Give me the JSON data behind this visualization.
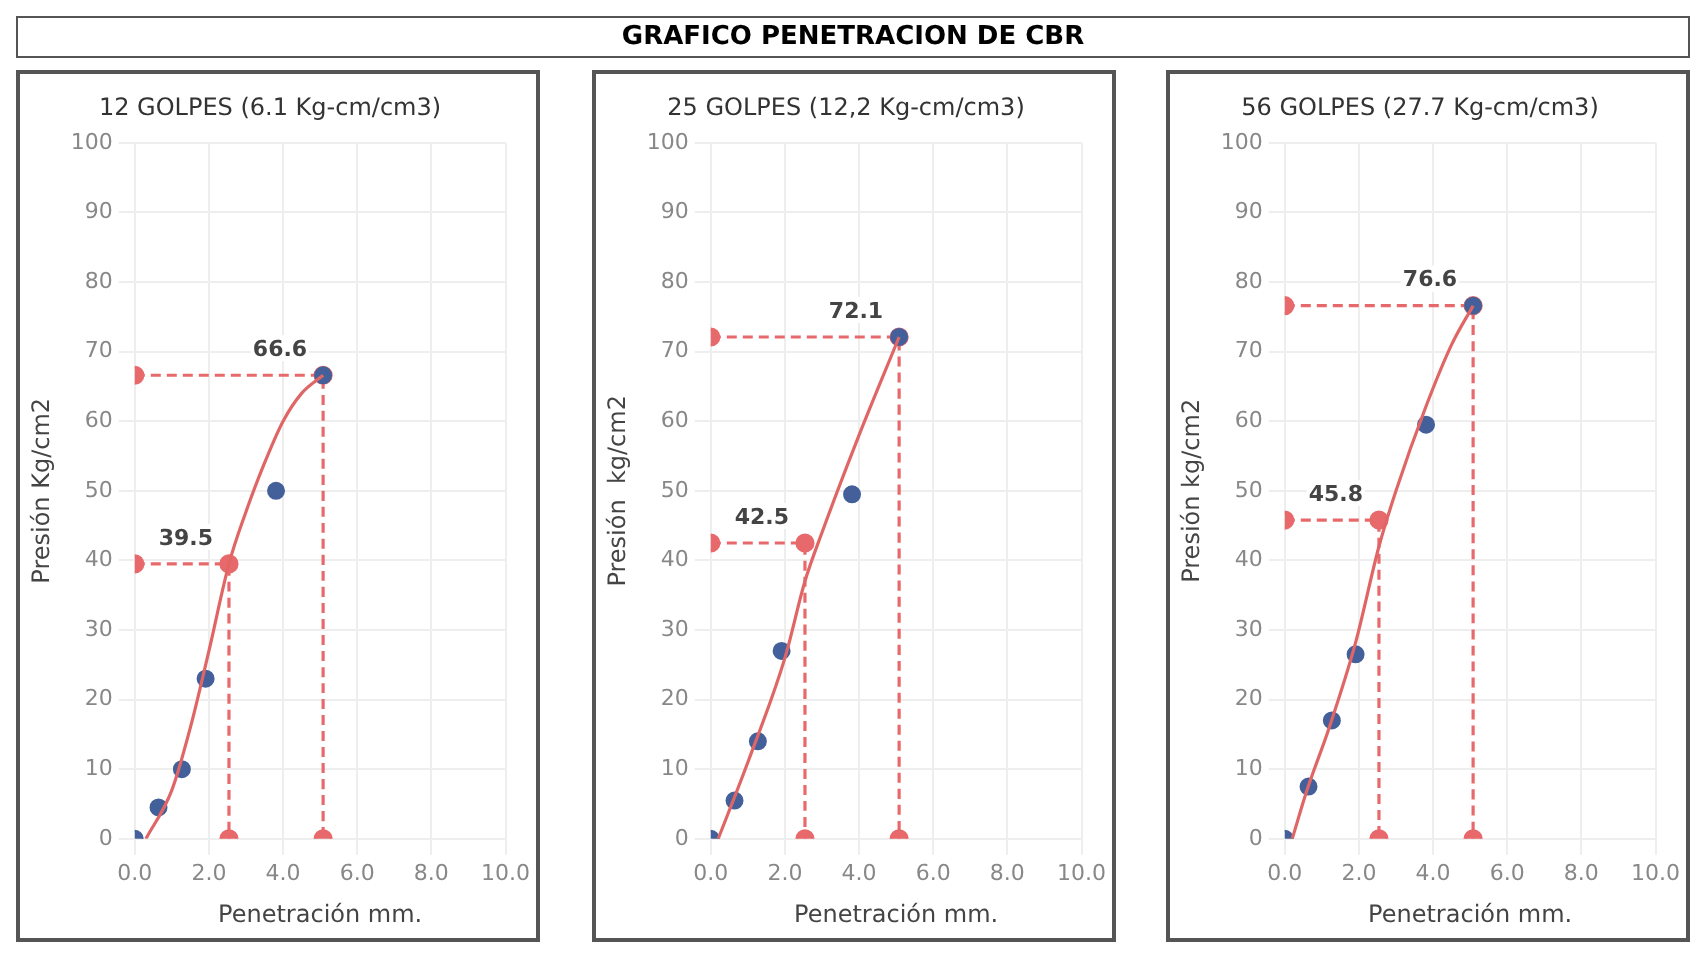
{
  "chart_data": [
    {
      "type": "scatter",
      "title": "12 GOLPES (6.1 Kg-cm/cm3)",
      "xlabel": "Penetración mm.",
      "ylabel": "Presión Kg/cm2",
      "annotations": [
        "GRAFICO PENETRACION DE CBR"
      ],
      "xlim": [
        0,
        10
      ],
      "xticks": [
        {
          "value": 0,
          "label": "0.0"
        },
        {
          "value": 2,
          "label": "2.0"
        },
        {
          "value": 4,
          "label": "4.0"
        },
        {
          "value": 6,
          "label": "6.0"
        },
        {
          "value": 8,
          "label": "8.0"
        },
        {
          "value": 10,
          "label": "10.0"
        }
      ],
      "ylim": [
        0,
        100
      ],
      "yticks": [
        0,
        10,
        20,
        30,
        40,
        50,
        60,
        70,
        80,
        90,
        100
      ],
      "grid": true,
      "series": [
        {
          "type": "line",
          "color": "#e06666",
          "marker": "none",
          "x": [
            0.3,
            1,
            1.5,
            2,
            2.54,
            3,
            3.5,
            4,
            4.5,
            5.08
          ],
          "values": [
            0,
            7,
            16,
            27,
            39.5,
            47,
            54,
            60,
            64,
            66.6
          ]
        },
        {
          "type": "scatter",
          "color": "#44609a",
          "marker": "circle",
          "x": [
            0,
            0.64,
            1.27,
            1.91,
            3.81,
            5.08
          ],
          "values": [
            0,
            4.5,
            10,
            23,
            50,
            66.6
          ]
        },
        {
          "type": "line",
          "color": "#e8696b",
          "marker": "circle",
          "line_style": "dashed",
          "x": [
            0,
            2.54,
            2.54
          ],
          "values": [
            39.5,
            39.5,
            0
          ],
          "value_labels": [
            null,
            "39.5",
            null
          ]
        },
        {
          "type": "line",
          "color": "#e8696b",
          "marker": "circle",
          "line_style": "dashed",
          "x": [
            0,
            5.08,
            5.08
          ],
          "values": [
            66.6,
            66.6,
            0
          ],
          "value_labels": [
            null,
            "66.6",
            null
          ]
        }
      ]
    },
    {
      "type": "scatter",
      "title": "25 GOLPES (12,2 Kg-cm/cm3)",
      "xlabel": "Penetración mm.",
      "ylabel": "Presión  kg/cm2",
      "xlim": [
        0,
        10
      ],
      "xticks": [
        {
          "value": 0,
          "label": "0.0"
        },
        {
          "value": 2,
          "label": "2.0"
        },
        {
          "value": 4,
          "label": "4.0"
        },
        {
          "value": 6,
          "label": "6.0"
        },
        {
          "value": 8,
          "label": "8.0"
        },
        {
          "value": 10,
          "label": "10.0"
        }
      ],
      "ylim": [
        0,
        100
      ],
      "yticks": [
        0,
        10,
        20,
        30,
        40,
        50,
        60,
        70,
        80,
        90,
        100
      ],
      "grid": true,
      "series": [
        {
          "type": "line",
          "color": "#e06666",
          "marker": "none",
          "x": [
            0.2,
            1,
            2,
            2.54,
            3,
            4,
            5.08
          ],
          "values": [
            0,
            11,
            26,
            37,
            44,
            58,
            72.1
          ]
        },
        {
          "type": "scatter",
          "color": "#44609a",
          "marker": "circle",
          "x": [
            0,
            0.64,
            1.27,
            1.91,
            3.81,
            5.08
          ],
          "values": [
            0,
            5.5,
            14,
            27,
            49.5,
            72.1
          ]
        },
        {
          "type": "line",
          "color": "#e8696b",
          "marker": "circle",
          "line_style": "dashed",
          "x": [
            0,
            2.54,
            2.54
          ],
          "values": [
            42.5,
            42.5,
            0
          ],
          "value_labels": [
            null,
            "42.5",
            null
          ]
        },
        {
          "type": "line",
          "color": "#e8696b",
          "marker": "circle",
          "line_style": "dashed",
          "x": [
            0,
            5.08,
            5.08
          ],
          "values": [
            72.1,
            72.1,
            0
          ],
          "value_labels": [
            null,
            "72.1",
            null
          ]
        }
      ]
    },
    {
      "type": "scatter",
      "title": "56 GOLPES (27.7 Kg-cm/cm3)",
      "xlabel": "Penetración mm.",
      "ylabel": "Presión kg/cm2",
      "xlim": [
        0,
        10
      ],
      "xticks": [
        {
          "value": 0,
          "label": "0.0"
        },
        {
          "value": 2,
          "label": "2.0"
        },
        {
          "value": 4,
          "label": "4.0"
        },
        {
          "value": 6,
          "label": "6.0"
        },
        {
          "value": 8,
          "label": "8.0"
        },
        {
          "value": 10,
          "label": "10.0"
        }
      ],
      "ylim": [
        0,
        100
      ],
      "yticks": [
        0,
        10,
        20,
        30,
        40,
        50,
        60,
        70,
        80,
        90,
        100
      ],
      "grid": true,
      "series": [
        {
          "type": "line",
          "color": "#e06666",
          "marker": "none",
          "x": [
            0.2,
            0.6,
            1.2,
            1.9,
            2.54,
            3,
            3.8,
            4.5,
            5.08
          ],
          "values": [
            0,
            7,
            16,
            28,
            42,
            50,
            62,
            71,
            76.6
          ]
        },
        {
          "type": "scatter",
          "color": "#44609a",
          "marker": "circle",
          "x": [
            0,
            0.64,
            1.27,
            1.91,
            3.81,
            5.08
          ],
          "values": [
            0,
            7.5,
            17,
            26.5,
            59.5,
            76.6
          ]
        },
        {
          "type": "line",
          "color": "#e8696b",
          "marker": "circle",
          "line_style": "dashed",
          "x": [
            0,
            2.54,
            2.54
          ],
          "values": [
            45.8,
            45.8,
            0
          ],
          "value_labels": [
            null,
            "45.8",
            null
          ]
        },
        {
          "type": "line",
          "color": "#e8696b",
          "marker": "circle",
          "line_style": "dashed",
          "x": [
            0,
            5.08,
            5.08
          ],
          "values": [
            76.6,
            76.6,
            0
          ],
          "value_labels": [
            null,
            "76.6",
            null
          ]
        }
      ]
    }
  ]
}
